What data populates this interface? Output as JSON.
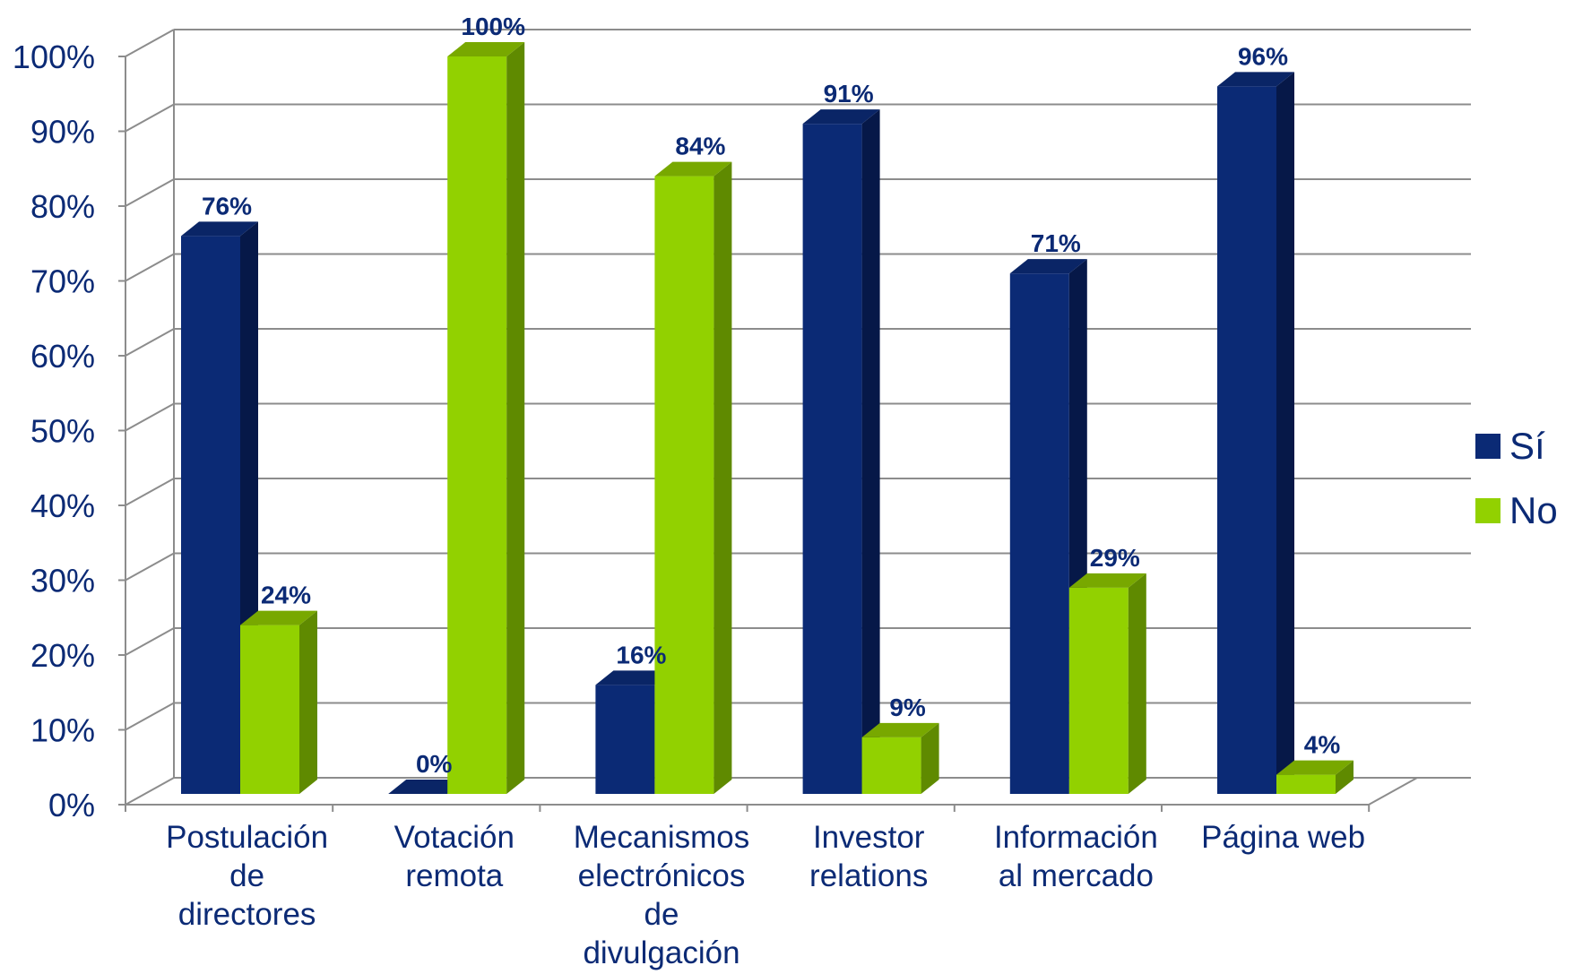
{
  "chart_data": {
    "type": "bar",
    "title": "",
    "xlabel": "",
    "ylabel": "",
    "ylim": [
      0,
      100
    ],
    "y_ticks": [
      "0%",
      "10%",
      "20%",
      "30%",
      "40%",
      "50%",
      "60%",
      "70%",
      "80%",
      "90%",
      "100%"
    ],
    "grid": true,
    "legend_position": "right",
    "categories": [
      [
        "Postulación",
        "de",
        "directores"
      ],
      [
        "Votación",
        "remota"
      ],
      [
        "Mecanismos",
        "electrónicos",
        "de",
        "divulgación"
      ],
      [
        "Investor",
        "relations"
      ],
      [
        "Información",
        "al mercado"
      ],
      [
        "Página web"
      ]
    ],
    "series": [
      {
        "name": "Sí",
        "color": "#0B2A75",
        "side_color": "#061848",
        "top_color": "#0A2566",
        "values": [
          76,
          0,
          16,
          91,
          71,
          96
        ],
        "labels": [
          "76%",
          "0%",
          "16%",
          "91%",
          "71%",
          "96%"
        ]
      },
      {
        "name": "No",
        "color": "#92D100",
        "side_color": "#5F8A00",
        "top_color": "#78A800",
        "values": [
          24,
          100,
          84,
          9,
          29,
          4
        ],
        "labels": [
          "24%",
          "100%",
          "84%",
          "9%",
          "29%",
          "4%"
        ]
      }
    ],
    "colors": {
      "axis_text": "#0B2A75",
      "data_label": "#0B2A75",
      "grid": "#8C8C8C"
    }
  }
}
